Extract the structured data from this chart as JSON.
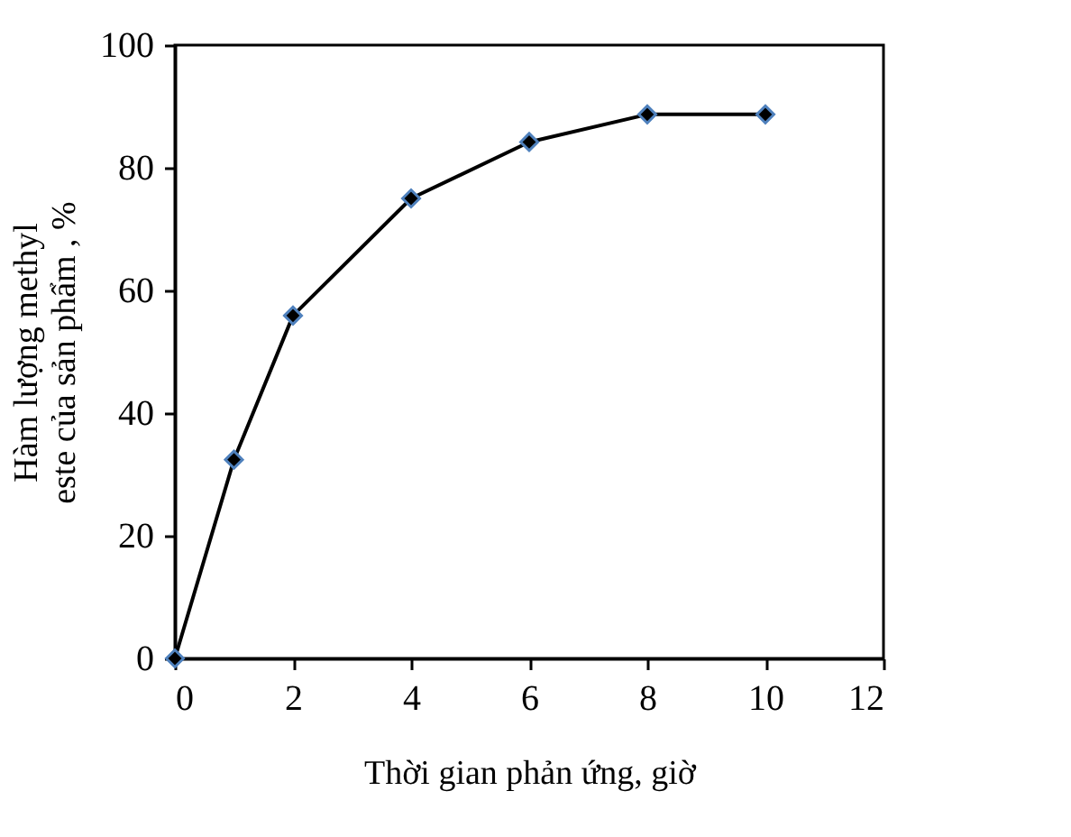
{
  "chart_data": {
    "type": "line",
    "xlabel": "Thời gian phản ứng, giờ",
    "ylabel": "Hàm lượng methyl este của sản phẩm , %",
    "x": [
      0,
      1,
      2,
      4,
      6,
      8,
      10
    ],
    "series": [
      {
        "color": "#000000",
        "values": [
          0,
          32.4,
          55.9,
          75,
          84.2,
          88.7,
          88.7
        ]
      }
    ],
    "xlim": [
      0,
      12
    ],
    "xticks": [
      0,
      2,
      4,
      6,
      8,
      10,
      12
    ],
    "ylim": [
      0,
      100
    ],
    "yticks": [
      0,
      20,
      40,
      60,
      80,
      100
    ],
    "grid": false,
    "marker": "diamond",
    "line_style": "solid"
  }
}
